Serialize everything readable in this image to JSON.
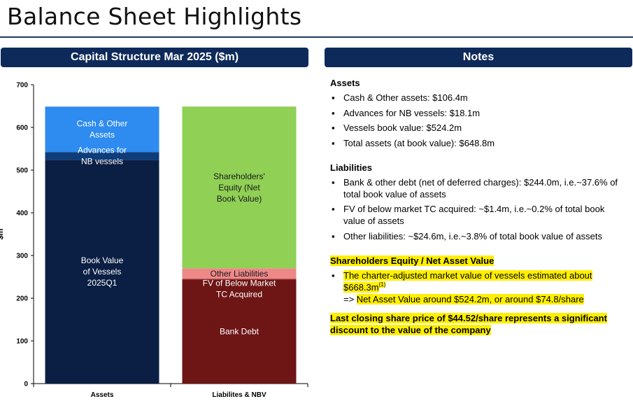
{
  "page": {
    "title": "Balance Sheet Highlights"
  },
  "colors": {
    "header_bg": "#0e2a5a",
    "book_value_vessels": "#0b1f44",
    "advances_nb_vessels": "#0d3d7a",
    "cash_other_assets": "#2e8bf0",
    "bank_debt": "#6e1515",
    "fv_below_market": "#8b1a1a",
    "other_liabilities": "#ee8888",
    "shareholders_equity": "#8fd055",
    "highlight": "#ffef00"
  },
  "chart_header": "Capital Structure Mar 2025 ($m)",
  "notes_header": "Notes",
  "chart_data": {
    "type": "bar",
    "stacked": true,
    "title": "Capital Structure Mar 2025 ($m)",
    "ylabel": "$m",
    "ylim": [
      0,
      700
    ],
    "yticks": [
      "0",
      "100",
      "200",
      "300",
      "400",
      "500",
      "600",
      "700"
    ],
    "categories": [
      "Assets",
      "Liabilites & NBV"
    ],
    "stacks": [
      {
        "category": "Assets",
        "segments": [
          {
            "label": "Book Value\nof Vessels\n2025Q1",
            "value": 524.2,
            "color": "#0b1f44"
          },
          {
            "label": "Advances for\nNB vessels",
            "value": 18.1,
            "color": "#0d3d7a"
          },
          {
            "label": "Cash & Other\nAssets",
            "value": 106.4,
            "color": "#2e8bf0"
          }
        ]
      },
      {
        "category": "Liabilites & NBV",
        "segments": [
          {
            "label": "Bank Debt",
            "value": 244.0,
            "color": "#6e1515"
          },
          {
            "label": "FV of Below Market\nTC Acquired",
            "value": 1.4,
            "color": "#8b1a1a"
          },
          {
            "label": "Other Liabilities",
            "value": 24.6,
            "color": "#ee8888"
          },
          {
            "label": "Shareholders'\nEquity (Net\nBook Value)",
            "value": 378.8,
            "color": "#8fd055"
          }
        ]
      }
    ]
  },
  "notes": {
    "assets": {
      "title": "Assets",
      "items": [
        "Cash & Other assets: $106.4m",
        "Advances for NB vessels: $18.1m",
        "Vessels book value: $524.2m",
        "Total assets (at book value): $648.8m"
      ]
    },
    "liabilities": {
      "title": "Liabilities",
      "items": [
        "Bank & other debt (net of deferred charges): $244.0m, i.e.~37.6% of total book value of assets",
        "FV of below market TC acquired: ~$1.4m, i.e.~0.2% of total book value of assets",
        "Other liabilities: ~$24.6m, i.e.~3.8% of total book value of assets"
      ]
    },
    "equity": {
      "title": "Shareholders Equity / Net Asset Value",
      "item_text": "The charter-adjusted market value of vessels estimated about $668.3m",
      "item_sup": "(1)",
      "nav_prefix": "=> ",
      "nav_text": "Net Asset Value around $524.2m, or around $74.8/share"
    },
    "closing": "Last closing share price of $44.52/share represents a significant discount to the value of the company"
  }
}
